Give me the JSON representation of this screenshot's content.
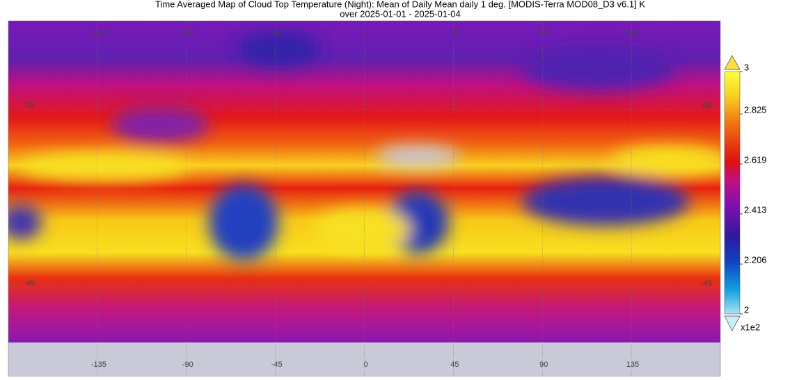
{
  "header": {
    "title": "Time Averaged Map of Cloud Top Temperature (Night): Mean of Daily Mean daily 1 deg. [MODIS-Terra MOD08_D3 v6.1] K",
    "subtitle": "over 2025-01-01 - 2025-01-04"
  },
  "map": {
    "lon_ticks": [
      -135,
      -90,
      -45,
      0,
      45,
      90,
      135
    ],
    "lat_ticks": [
      45,
      -45
    ]
  },
  "colorbar": {
    "lim": [
      2,
      3
    ],
    "ticks": [
      2,
      2.206,
      2.413,
      2.619,
      2.825,
      3
    ],
    "multiplier": "x1e2"
  }
}
